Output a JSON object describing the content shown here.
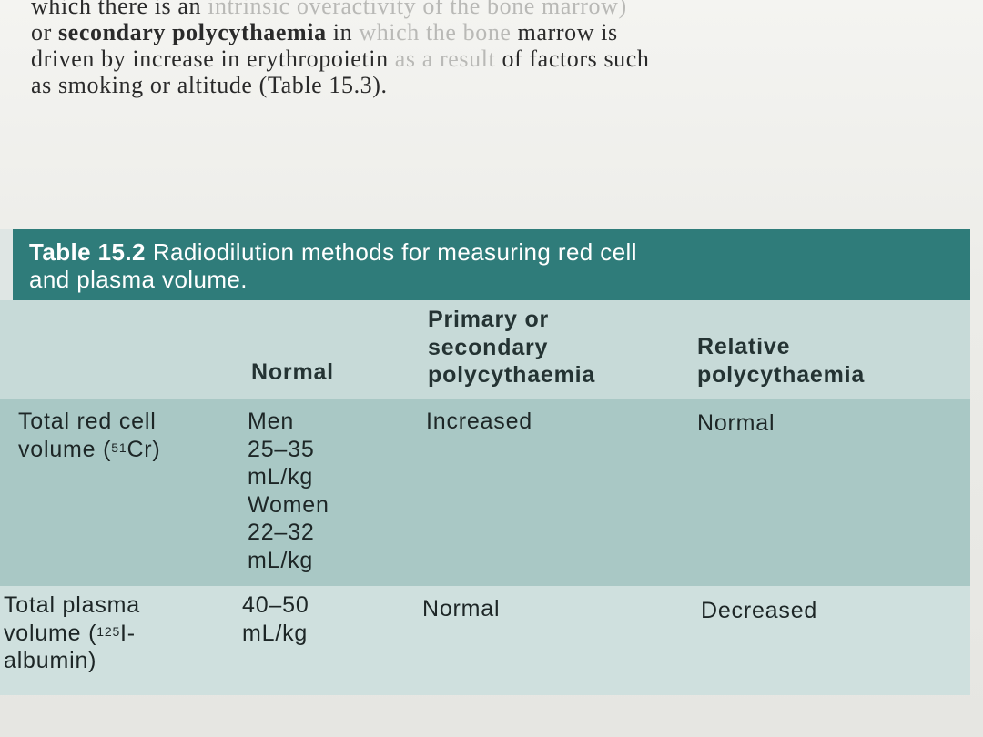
{
  "prose": {
    "line1_a": "which there is an ",
    "line1_b": "intrinsic overactivity of the bone marrow)",
    "line2_a": "or ",
    "line2_bold": "secondary polycythaemia",
    "line2_b": " in ",
    "line2_faded": "which the bone",
    "line2_c": " marrow is",
    "line3_a": "driven by increase in erythropoietin ",
    "line3_faded": "as a result",
    "line3_b": " of factors such",
    "line4": "as smoking or altitude (Table 15.3)."
  },
  "table": {
    "number": "Table 15.2",
    "title": "Radiodilution methods for measuring red cell",
    "title_line2": "and plasma volume.",
    "headers": {
      "normal": "Normal",
      "primary_line1": "Primary or",
      "primary_line2": "secondary",
      "primary_line3": "polycythaemia",
      "relative_line1": "Relative",
      "relative_line2": "polycythaemia"
    },
    "rows": [
      {
        "label_line1": "Total red cell",
        "label_line2_pre": "volume (",
        "label_sup": "51",
        "label_line2_post": "Cr)",
        "normal": [
          "Men",
          "25–35",
          "mL/kg",
          "Women",
          "22–32",
          "mL/kg"
        ],
        "primary": "Increased",
        "relative": "Normal"
      },
      {
        "label_line1": "Total plasma",
        "label_line2_pre": "volume (",
        "label_sup": "125",
        "label_line2_post": "I-",
        "label_line3": "albumin)",
        "normal": [
          "40–50",
          "mL/kg"
        ],
        "primary": "Normal",
        "relative": "Decreased"
      }
    ]
  }
}
